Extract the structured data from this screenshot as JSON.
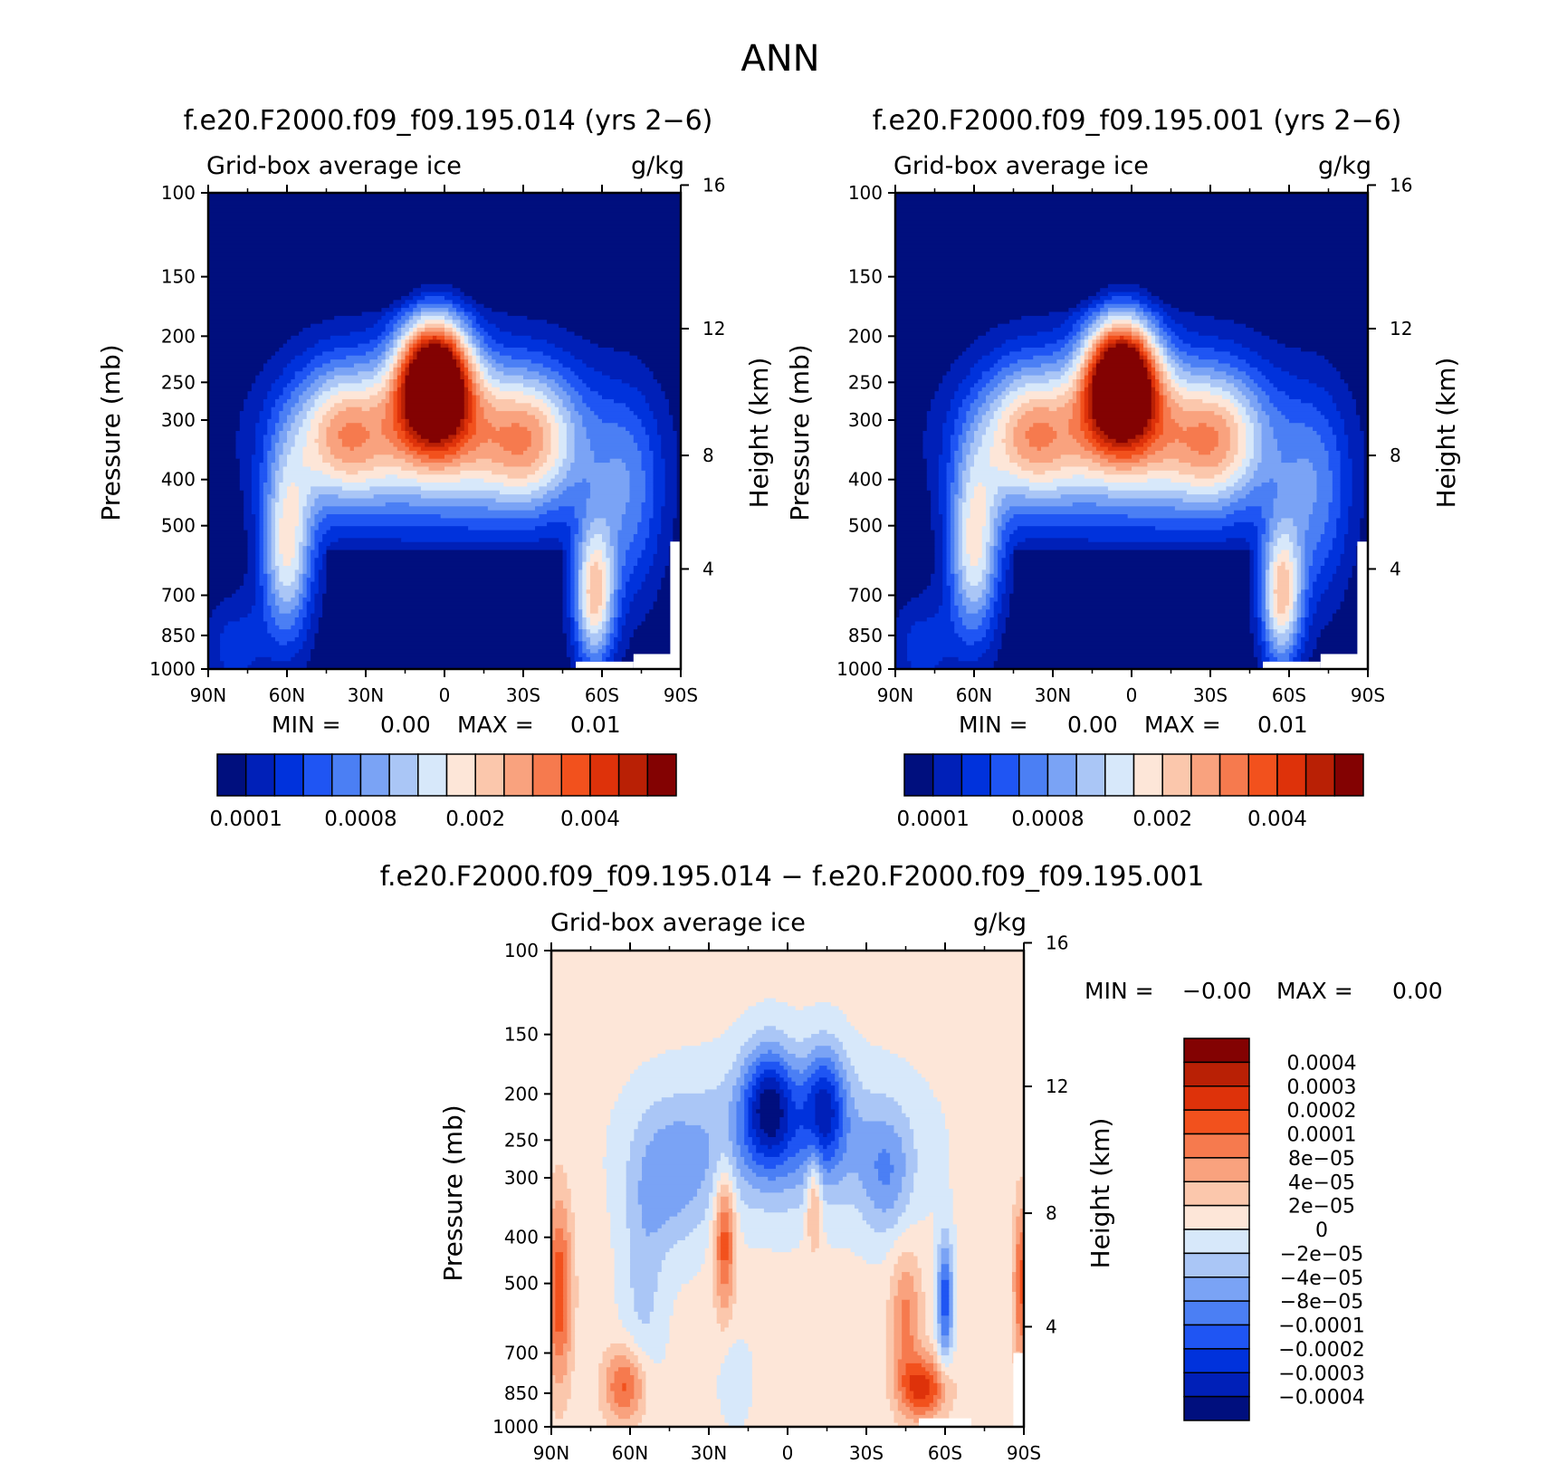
{
  "figure": {
    "title": "ANN"
  },
  "colors": {
    "abs_scale": [
      "#000f7e",
      "#0020b8",
      "#0032dc",
      "#1f55f3",
      "#4b7ff4",
      "#7aa3f5",
      "#aac6f6",
      "#d7e8fa",
      "#fde6d8",
      "#fbc7ac",
      "#f9a27e",
      "#f67a4e",
      "#f2511d",
      "#de320a",
      "#b92005",
      "#830202"
    ],
    "diff_scale": [
      "#000f7e",
      "#0020b8",
      "#0032dc",
      "#1f55f3",
      "#4b7ff4",
      "#7aa3f5",
      "#aac6f6",
      "#d7e8fa",
      "#fde6d8",
      "#fbc7ac",
      "#f9a27e",
      "#f67a4e",
      "#f2511d",
      "#de320a",
      "#b92005",
      "#830202"
    ],
    "missing": "#ffffff"
  },
  "common": {
    "variable": "Grid-box average ice",
    "units": "g/kg",
    "left_axis_label": "Pressure (mb)",
    "right_axis_label": "Height (km)"
  },
  "chart_data": [
    {
      "type": "heatmap",
      "subtitle": "f.e20.F2000.f09_f09.195.014 (yrs 2−6)",
      "variable": "Grid-box average ice",
      "units": "g/kg",
      "x_ticks": [
        "90N",
        "60N",
        "30N",
        "0",
        "30S",
        "60S",
        "90S"
      ],
      "x_range": [
        90,
        -90
      ],
      "y_ticks": [
        100,
        150,
        200,
        250,
        300,
        400,
        500,
        700,
        850,
        1000
      ],
      "y_range": [
        1000,
        100
      ],
      "y_scale": "log pressure",
      "right_ticks": [
        16,
        12,
        8,
        4
      ],
      "stats": {
        "min_label": "MIN =",
        "min": "0.00",
        "max_label": "MAX =",
        "max": "0.01"
      },
      "colorbar": {
        "orientation": "horizontal",
        "labels": [
          "0.0001",
          "0.0008",
          "0.002",
          "0.004"
        ]
      },
      "features": [
        {
          "lat": 7,
          "p": 230,
          "v": 16
        },
        {
          "lat": -12,
          "p": 330,
          "v": 9
        },
        {
          "lat": 42,
          "p": 300,
          "v": 12
        },
        {
          "lat": -30,
          "p": 320,
          "v": 11
        },
        {
          "lat": -57,
          "p": 760,
          "v": 12
        },
        {
          "lat": 58,
          "p": 600,
          "v": 9
        },
        {
          "lat": 0,
          "p": 850,
          "v": 0
        }
      ]
    },
    {
      "type": "heatmap",
      "subtitle": "f.e20.F2000.f09_f09.195.001 (yrs 2−6)",
      "variable": "Grid-box average ice",
      "units": "g/kg",
      "x_ticks": [
        "90N",
        "60N",
        "30N",
        "0",
        "30S",
        "60S",
        "90S"
      ],
      "x_range": [
        90,
        -90
      ],
      "y_ticks": [
        100,
        150,
        200,
        250,
        300,
        400,
        500,
        700,
        850,
        1000
      ],
      "y_range": [
        1000,
        100
      ],
      "y_scale": "log pressure",
      "right_ticks": [
        16,
        12,
        8,
        4
      ],
      "stats": {
        "min_label": "MIN =",
        "min": "0.00",
        "max_label": "MAX =",
        "max": "0.01"
      },
      "colorbar": {
        "orientation": "horizontal",
        "labels": [
          "0.0001",
          "0.0008",
          "0.002",
          "0.004"
        ]
      },
      "features": [
        {
          "lat": 7,
          "p": 230,
          "v": 16
        },
        {
          "lat": -12,
          "p": 330,
          "v": 9
        },
        {
          "lat": 42,
          "p": 300,
          "v": 12
        },
        {
          "lat": -30,
          "p": 320,
          "v": 11
        },
        {
          "lat": -57,
          "p": 760,
          "v": 12
        },
        {
          "lat": 58,
          "p": 600,
          "v": 9
        },
        {
          "lat": 0,
          "p": 850,
          "v": 0
        }
      ]
    },
    {
      "type": "heatmap",
      "subtitle": "f.e20.F2000.f09_f09.195.014 − f.e20.F2000.f09_f09.195.001",
      "variable": "Grid-box average ice",
      "units": "g/kg",
      "x_ticks": [
        "90N",
        "60N",
        "30N",
        "0",
        "30S",
        "60S",
        "90S"
      ],
      "x_range": [
        90,
        -90
      ],
      "y_ticks": [
        100,
        150,
        200,
        250,
        300,
        400,
        500,
        700,
        850,
        1000
      ],
      "y_range": [
        1000,
        100
      ],
      "y_scale": "log pressure",
      "right_ticks": [
        16,
        12,
        8,
        4
      ],
      "stats": {
        "min_label": "MIN =",
        "min": "−0.00",
        "max_label": "MAX =",
        "max": "0.00"
      },
      "colorbar": {
        "orientation": "vertical",
        "labels": [
          "0.0004",
          "0.0003",
          "0.0002",
          "0.0001",
          "8e−05",
          "4e−05",
          "2e−05",
          "0",
          "−2e−05",
          "−4e−05",
          "−8e−05",
          "−0.0001",
          "−0.0002",
          "−0.0003",
          "−0.0004"
        ]
      },
      "features": [
        {
          "lat": 5,
          "p": 220,
          "v": -4
        },
        {
          "lat": -14,
          "p": 220,
          "v": -3
        },
        {
          "lat": 25,
          "p": 450,
          "v": 4
        },
        {
          "lat": -9,
          "p": 330,
          "v": 3
        },
        {
          "lat": 60,
          "p": 850,
          "v": 3
        },
        {
          "lat": -52,
          "p": 830,
          "v": 4
        },
        {
          "lat": 86,
          "p": 550,
          "v": 3
        },
        {
          "lat": -88,
          "p": 500,
          "v": 3
        },
        {
          "lat": -60,
          "p": 550,
          "v": -3
        },
        {
          "lat": 50,
          "p": 600,
          "v": -2
        }
      ]
    }
  ]
}
